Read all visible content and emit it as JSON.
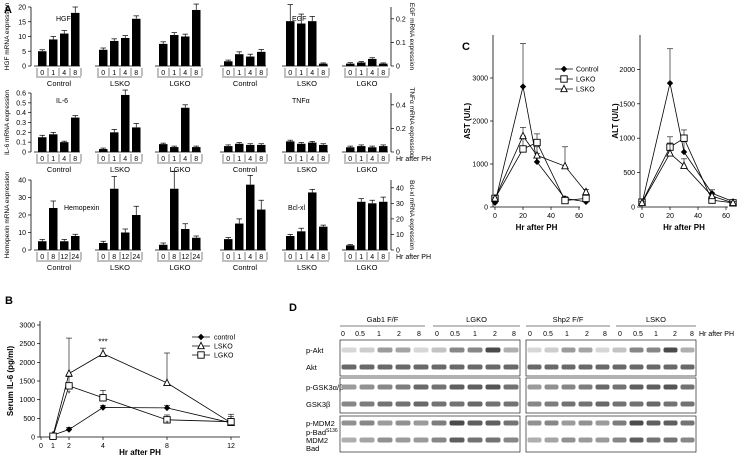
{
  "panel_labels": {
    "A": "A",
    "B": "B",
    "C": "C",
    "D": "D"
  },
  "hr_after_ph": "Hr after PH",
  "chart_data": [
    {
      "panel": "A",
      "row": 1,
      "type": "bar",
      "ylabel_left": "HGF mRNA expression",
      "ylabel_right": "EGF mRNA expression",
      "left_ticks": [
        "0",
        "5",
        "10",
        "15",
        "20"
      ],
      "right_ticks": [
        "0",
        "0.1",
        "0.2"
      ],
      "groups": [
        {
          "label": "Control",
          "x": [
            "0",
            "1",
            "4",
            "8"
          ],
          "values": [
            5,
            9,
            11,
            18
          ],
          "err": [
            0.5,
            1,
            1,
            2
          ],
          "axis": "left",
          "annot": "HGF"
        },
        {
          "label": "LSKO",
          "x": [
            "0",
            "1",
            "4",
            "8"
          ],
          "values": [
            5.5,
            8.5,
            9.5,
            16
          ],
          "err": [
            0.6,
            0.7,
            0.8,
            1
          ],
          "axis": "left"
        },
        {
          "label": "LGKO",
          "x": [
            "0",
            "1",
            "4",
            "8"
          ],
          "values": [
            7.5,
            10.5,
            10,
            19
          ],
          "err": [
            0.7,
            0.8,
            0.8,
            2
          ],
          "axis": "left"
        },
        {
          "label": "Control",
          "x": [
            "0",
            "1",
            "4",
            "8"
          ],
          "values": [
            0.02,
            0.05,
            0.04,
            0.06
          ],
          "err": [
            0.005,
            0.01,
            0.01,
            0.01
          ],
          "axis": "right",
          "annot": "EGF"
        },
        {
          "label": "LSKO",
          "x": [
            "0",
            "1",
            "4",
            "8"
          ],
          "values": [
            0.19,
            0.18,
            0.19,
            0.01
          ],
          "err": [
            0.07,
            0.04,
            0.02,
            0.003
          ],
          "axis": "right"
        },
        {
          "label": "LGKO",
          "x": [
            "0",
            "1",
            "4",
            "8"
          ],
          "values": [
            0.01,
            0.015,
            0.03,
            0.01
          ],
          "err": [
            0.004,
            0.004,
            0.005,
            0.003
          ],
          "axis": "right"
        }
      ]
    },
    {
      "panel": "A",
      "row": 2,
      "type": "bar",
      "ylabel_left": "IL-6 mRNA expression",
      "ylabel_right": "TNFα mRNA expression",
      "left_ticks": [
        "0",
        "0.1",
        "0.2",
        "0.3",
        "0.4",
        "0.5",
        "0.6"
      ],
      "right_ticks": [
        "0",
        "0.2",
        "0.4"
      ],
      "groups": [
        {
          "label": "Control",
          "x": [
            "0",
            "1",
            "4",
            "8"
          ],
          "values": [
            0.15,
            0.18,
            0.1,
            0.35
          ],
          "err": [
            0.02,
            0.02,
            0.01,
            0.02
          ],
          "axis": "left",
          "annot": "IL-6"
        },
        {
          "label": "LSKO",
          "x": [
            "0",
            "1",
            "4",
            "8"
          ],
          "values": [
            0.03,
            0.2,
            0.58,
            0.25
          ],
          "err": [
            0.01,
            0.03,
            0.05,
            0.04
          ],
          "axis": "left"
        },
        {
          "label": "LGKO",
          "x": [
            "0",
            "1",
            "4",
            "8"
          ],
          "values": [
            0.08,
            0.05,
            0.45,
            0.05
          ],
          "err": [
            0.01,
            0.01,
            0.03,
            0.01
          ],
          "axis": "left"
        },
        {
          "label": "Control",
          "x": [
            "0",
            "1",
            "4",
            "8"
          ],
          "values": [
            0.05,
            0.07,
            0.06,
            0.06
          ],
          "err": [
            0.01,
            0.01,
            0.01,
            0.01
          ],
          "axis": "right",
          "annot": "TNFα"
        },
        {
          "label": "LSKO",
          "x": [
            "0",
            "1",
            "4",
            "8"
          ],
          "values": [
            0.09,
            0.07,
            0.08,
            0.06
          ],
          "err": [
            0.01,
            0.01,
            0.01,
            0.01
          ],
          "axis": "right"
        },
        {
          "label": "LGKO",
          "x": [
            "0",
            "1",
            "4",
            "8"
          ],
          "values": [
            0.04,
            0.05,
            0.04,
            0.05
          ],
          "err": [
            0.01,
            0.01,
            0.01,
            0.01
          ],
          "axis": "right"
        }
      ]
    },
    {
      "panel": "A",
      "row": 3,
      "type": "bar",
      "ylabel_left": "Hemopexin mRNA expression",
      "ylabel_right": "Bcl-xl mRNA expression",
      "left_ticks": [
        "0",
        "10",
        "20",
        "30",
        "40"
      ],
      "right_ticks": [
        "0",
        "10",
        "20",
        "30",
        "40"
      ],
      "groups": [
        {
          "label": "Control",
          "x": [
            "0",
            "8",
            "12",
            "24"
          ],
          "values": [
            5,
            24,
            5,
            8
          ],
          "err": [
            1,
            4,
            1,
            1
          ],
          "axis": "left",
          "annot": "Hemopexin"
        },
        {
          "label": "LSKO",
          "x": [
            "0",
            "8",
            "12",
            "24"
          ],
          "values": [
            4,
            35,
            10,
            20
          ],
          "err": [
            1,
            7,
            2,
            5
          ],
          "axis": "left"
        },
        {
          "label": "LGKO",
          "x": [
            "0",
            "8",
            "12",
            "24"
          ],
          "values": [
            3,
            35,
            12,
            7
          ],
          "err": [
            1,
            10,
            3,
            1
          ],
          "axis": "left"
        },
        {
          "label": "Control",
          "x": [
            "0",
            "1",
            "4",
            "8"
          ],
          "values": [
            7,
            17,
            42,
            26
          ],
          "err": [
            1,
            3,
            6,
            6
          ],
          "axis": "right",
          "annot": "Bcl-xl"
        },
        {
          "label": "LSKO",
          "x": [
            "0",
            "1",
            "4",
            "8"
          ],
          "values": [
            9,
            12,
            37,
            15
          ],
          "err": [
            1,
            2,
            2,
            1
          ],
          "axis": "right"
        },
        {
          "label": "LGKO",
          "x": [
            "0",
            "1",
            "4",
            "8"
          ],
          "values": [
            3,
            31,
            30,
            31
          ],
          "err": [
            0.5,
            2,
            2,
            3
          ],
          "axis": "right"
        }
      ]
    },
    {
      "panel": "B",
      "type": "line",
      "ylabel": "Serum IL-6 (pg/ml)",
      "xlabel": "Hr after PH",
      "y_ticks": [
        "0",
        "500",
        "1000",
        "1500",
        "2000",
        "2500",
        "3000"
      ],
      "ylim": [
        0,
        3000
      ],
      "x_ticks": [
        "0",
        "1",
        "2",
        "4",
        "8",
        "12"
      ],
      "legend": [
        "control",
        "LSKO",
        "LGKO"
      ],
      "series": [
        {
          "name": "control",
          "marker": "diamond",
          "x": [
            1,
            2,
            4,
            8,
            12
          ],
          "y": [
            50,
            200,
            790,
            780,
            380
          ],
          "err": [
            30,
            60,
            60,
            70,
            120
          ]
        },
        {
          "name": "LSKO",
          "marker": "triangle",
          "x": [
            1,
            2,
            4,
            8,
            12
          ],
          "y": [
            40,
            1700,
            2230,
            1450,
            380
          ],
          "err": [
            30,
            950,
            150,
            800,
            230
          ]
        },
        {
          "name": "LGKO",
          "marker": "square",
          "x": [
            1,
            2,
            4,
            8,
            12
          ],
          "y": [
            20,
            1370,
            1050,
            460,
            410
          ],
          "err": [
            20,
            250,
            200,
            130,
            140
          ]
        }
      ],
      "annotations": [
        {
          "x": 4,
          "y": 2230,
          "text": "***"
        },
        {
          "x": 2,
          "y": 1000,
          "text": "*"
        },
        {
          "x": 8,
          "y": 200,
          "text": "*"
        }
      ]
    },
    {
      "panel": "C",
      "type": "line",
      "ylabel": "AST (U/L)",
      "xlabel": "Hr after PH",
      "y_ticks": [
        "0",
        "1000",
        "2000",
        "3000"
      ],
      "ylim": [
        0,
        4000
      ],
      "x_ticks": [
        "0",
        "20",
        "40",
        "60"
      ],
      "legend": [
        "Control",
        "LGKO",
        "LSKO"
      ],
      "series": [
        {
          "name": "Control",
          "marker": "diamond",
          "x": [
            0,
            20,
            30,
            50,
            65
          ],
          "y": [
            100,
            2800,
            1050,
            200,
            120
          ],
          "err": [
            30,
            1000,
            200,
            40,
            30
          ]
        },
        {
          "name": "LGKO",
          "marker": "square",
          "x": [
            0,
            20,
            30,
            50,
            65
          ],
          "y": [
            200,
            1350,
            1500,
            150,
            200
          ],
          "err": [
            30,
            300,
            200,
            30,
            50
          ]
        },
        {
          "name": "LSKO",
          "marker": "triangle",
          "x": [
            0,
            20,
            30,
            50,
            65
          ],
          "y": [
            200,
            1650,
            1200,
            950,
            350
          ],
          "err": [
            30,
            200,
            200,
            450,
            60
          ]
        }
      ]
    },
    {
      "panel": "C",
      "type": "line",
      "ylabel": "ALT (U/L)",
      "xlabel": "Hr after PH",
      "y_ticks": [
        "0",
        "500",
        "1000",
        "1500",
        "2000"
      ],
      "ylim": [
        0,
        2500
      ],
      "x_ticks": [
        "0",
        "20",
        "40",
        "60"
      ],
      "series": [
        {
          "name": "Control",
          "marker": "diamond",
          "x": [
            0,
            20,
            30,
            50,
            65
          ],
          "y": [
            50,
            1800,
            800,
            200,
            80
          ],
          "err": [
            20,
            500,
            150,
            50,
            20
          ]
        },
        {
          "name": "LGKO",
          "marker": "square",
          "x": [
            0,
            20,
            30,
            50,
            65
          ],
          "y": [
            70,
            870,
            1000,
            100,
            60
          ],
          "err": [
            20,
            150,
            120,
            30,
            20
          ]
        },
        {
          "name": "LSKO",
          "marker": "triangle",
          "x": [
            0,
            20,
            30,
            50,
            65
          ],
          "y": [
            60,
            780,
            600,
            160,
            60
          ],
          "err": [
            20,
            150,
            100,
            40,
            20
          ]
        }
      ]
    }
  ],
  "blots": {
    "groups": [
      "Gab1 F/F",
      "LGKO",
      "Shp2 F/F",
      "LSKO"
    ],
    "timepoints": [
      "0",
      "0.5",
      "1",
      "2",
      "8"
    ],
    "hr_label": "Hr after PH",
    "rows": [
      "p-Akt",
      "Akt",
      "p-GSK3α/β",
      "GSK3β",
      "p-MDM2",
      "MDM2",
      "p-Bad",
      "Bad"
    ],
    "bad_superscript": "S136"
  }
}
